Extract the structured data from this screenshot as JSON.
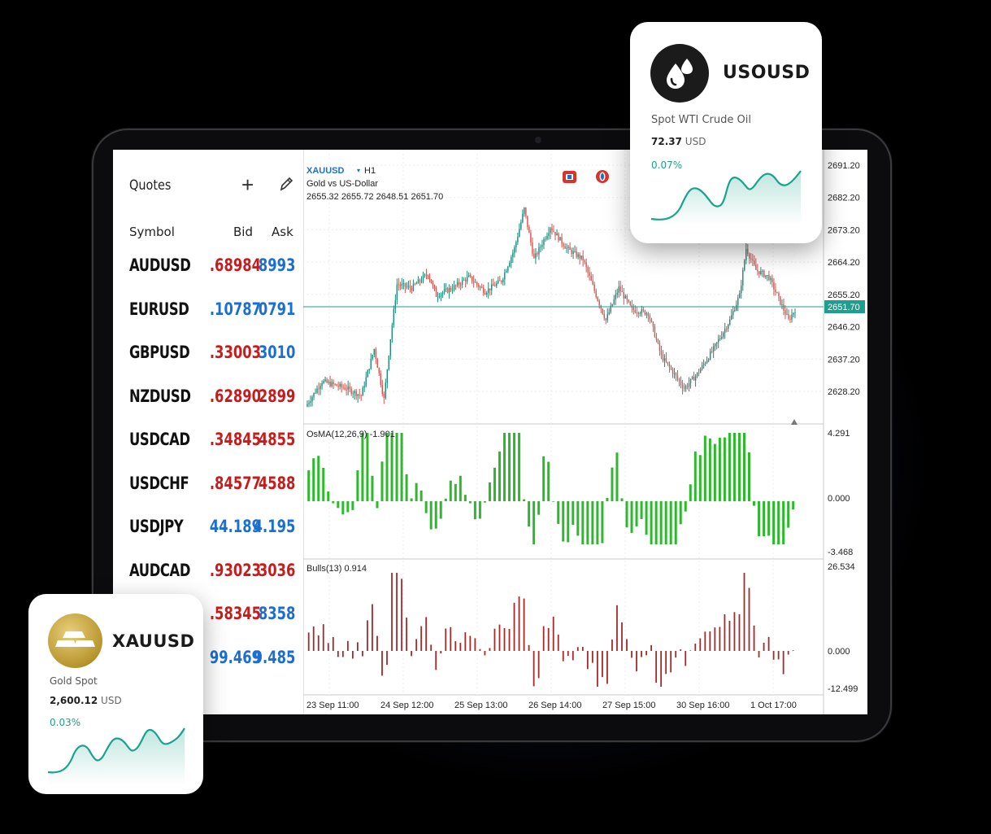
{
  "quotes": {
    "title": "Quotes",
    "col_symbol": "Symbol",
    "col_bid": "Bid",
    "col_ask": "Ask",
    "rows": [
      {
        "symbol": "AUDUSD",
        "bid": ".68984",
        "ask": "8993",
        "bid_color": "red",
        "ask_color": "blue"
      },
      {
        "symbol": "EURUSD",
        "bid": ".10787",
        "ask": "0791",
        "bid_color": "blue",
        "ask_color": "blue"
      },
      {
        "symbol": "GBPUSD",
        "bid": ".33003",
        "ask": "3010",
        "bid_color": "red",
        "ask_color": "blue"
      },
      {
        "symbol": "NZDUSD",
        "bid": ".62890",
        "ask": "2899",
        "bid_color": "red",
        "ask_color": "red"
      },
      {
        "symbol": "USDCAD",
        "bid": ".34845",
        "ask": "4855",
        "bid_color": "red",
        "ask_color": "red"
      },
      {
        "symbol": "USDCHF",
        "bid": ".84577",
        "ask": "4588",
        "bid_color": "red",
        "ask_color": "red"
      },
      {
        "symbol": "USDJPY",
        "bid": "44.189",
        "ask": "4.195",
        "bid_color": "blue",
        "ask_color": "blue"
      },
      {
        "symbol": "AUDCAD",
        "bid": ".93023",
        "ask": "3036",
        "bid_color": "red",
        "ask_color": "red"
      },
      {
        "symbol": "",
        "bid": ".58345",
        "ask": "8358",
        "bid_color": "red",
        "ask_color": "blue"
      },
      {
        "symbol": "",
        "bid": "99.469",
        "ask": "9.485",
        "bid_color": "blue",
        "ask_color": "blue"
      }
    ]
  },
  "chart": {
    "symbol": "XAUUSD",
    "timeframe": "H1",
    "description": "Gold vs US-Dollar",
    "ohlc": "2655.32 2655.72 2648.51 2651.70",
    "current_price": "2651.70",
    "price_ticks": [
      "2691.20",
      "2682.20",
      "2673.20",
      "2664.20",
      "2655.20",
      "2646.20",
      "2637.20",
      "2628.20"
    ],
    "osma_label": "OsMA(12,26,9) -1.901",
    "osma_ticks": [
      "4.291",
      "0.000",
      "-3.468"
    ],
    "bulls_label": "Bulls(13) 0.914",
    "bulls_ticks": [
      "26.534",
      "0.000",
      "-12.499"
    ],
    "time_ticks": [
      "23 Sep 11:00",
      "24 Sep 12:00",
      "25 Sep 13:00",
      "26 Sep 14:00",
      "27 Sep 15:00",
      "30 Sep 16:00",
      "1 Oct 17:00"
    ],
    "colors": {
      "bull": "#1f8a7a",
      "bear": "#d9534f",
      "osma": "#2eb82e",
      "bulls": "#a52a2a",
      "price_line": "#1f9e8e"
    }
  },
  "chart_data": [
    {
      "type": "line",
      "title": "XAUUSD H1",
      "ylabel": "",
      "x": [
        "23 Sep 11:00",
        "24 Sep 12:00",
        "25 Sep 13:00",
        "26 Sep 14:00",
        "27 Sep 15:00",
        "30 Sep 16:00",
        "1 Oct 17:00"
      ],
      "series": [
        {
          "name": "XAUUSD",
          "values": [
            2630,
            2656,
            2657,
            2680,
            2654,
            2630,
            2651.7
          ]
        }
      ],
      "ylim": [
        2622,
        2694
      ]
    }
  ],
  "cards": {
    "usousd": {
      "ticker": "USOUSD",
      "desc": "Spot WTI Crude Oil",
      "price": "72.37",
      "currency": "USD",
      "change": "0.07%",
      "logo_icon": "drops-icon"
    },
    "xauusd": {
      "ticker": "XAUUSD",
      "desc": "Gold Spot",
      "price": "2,600.12",
      "currency": "USD",
      "change": "0.03%",
      "logo_icon": "gold-bars-icon"
    }
  }
}
